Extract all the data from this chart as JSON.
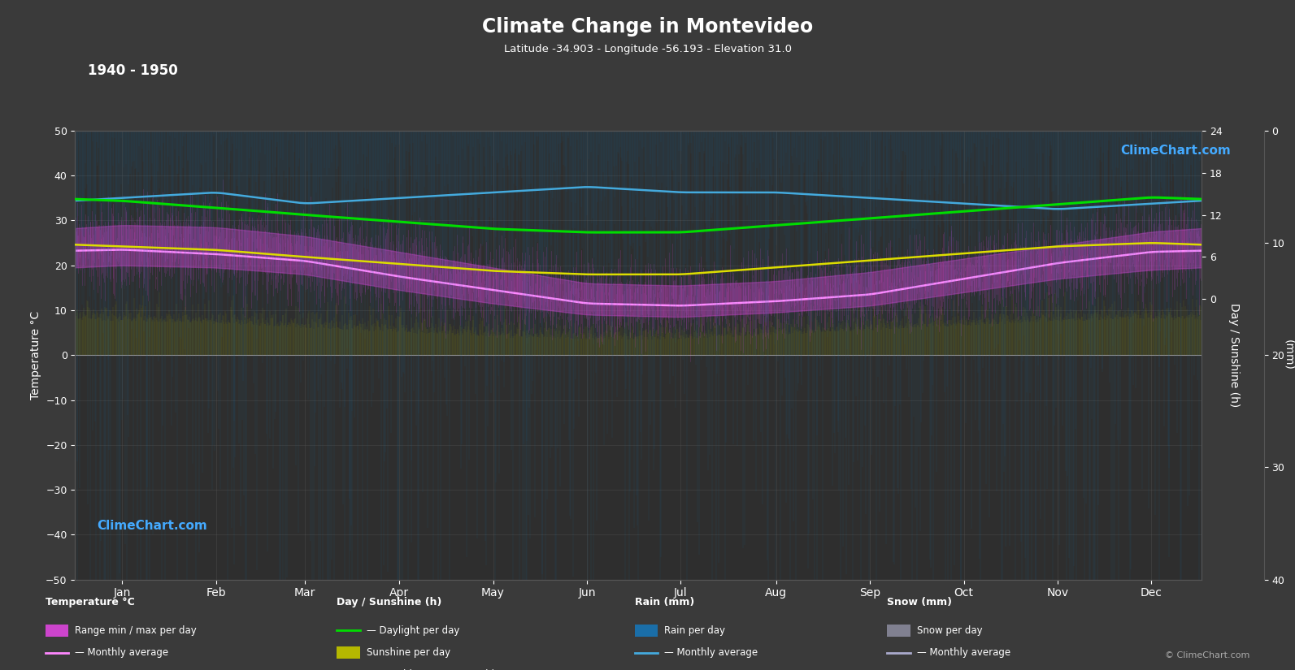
{
  "title": "Climate Change in Montevideo",
  "subtitle": "Latitude -34.903 - Longitude -56.193 - Elevation 31.0",
  "period": "1940 - 1950",
  "bg_color": "#3a3a3a",
  "plot_bg_color": "#2e2e2e",
  "grid_color": "#555555",
  "text_color": "#ffffff",
  "months": [
    "Jan",
    "Feb",
    "Mar",
    "Apr",
    "May",
    "Jun",
    "Jul",
    "Aug",
    "Sep",
    "Oct",
    "Nov",
    "Dec"
  ],
  "month_positions": [
    15.2,
    45.6,
    74.4,
    105.0,
    135.4,
    165.8,
    196.2,
    227.1,
    257.5,
    287.9,
    318.3,
    348.7
  ],
  "temp_max_monthly": [
    29.0,
    28.5,
    26.5,
    23.0,
    19.5,
    16.0,
    15.5,
    16.5,
    18.5,
    21.5,
    24.5,
    27.5
  ],
  "temp_min_monthly": [
    20.0,
    19.5,
    18.0,
    14.5,
    11.5,
    9.0,
    8.5,
    9.5,
    11.0,
    14.0,
    17.0,
    19.0
  ],
  "temp_avg_monthly": [
    23.5,
    22.5,
    21.0,
    17.5,
    14.5,
    11.5,
    11.0,
    12.0,
    13.5,
    17.0,
    20.5,
    23.0
  ],
  "sunshine_monthly_avg": [
    7.5,
    7.0,
    6.0,
    5.0,
    4.0,
    3.5,
    3.5,
    4.5,
    5.5,
    6.5,
    7.5,
    8.0
  ],
  "daylight_monthly": [
    14.0,
    13.0,
    12.0,
    11.0,
    10.0,
    9.5,
    9.5,
    10.5,
    11.5,
    12.5,
    13.5,
    14.5
  ],
  "rain_monthly_avg_mm": [
    6.0,
    5.5,
    6.5,
    6.0,
    5.5,
    5.0,
    5.5,
    5.5,
    6.0,
    6.5,
    7.0,
    6.5
  ],
  "colors": {
    "sunshine_bar": "#b5b800",
    "rain_bar": "#1a6ea8",
    "snow_bar": "#808090",
    "temp_range_fill": "#cc44cc",
    "temp_avg_line": "#ff88ff",
    "daylight_line": "#00dd00",
    "sunshine_avg_line": "#dddd00",
    "rain_avg_line": "#44aadd",
    "snow_avg_line": "#aaaacc"
  }
}
